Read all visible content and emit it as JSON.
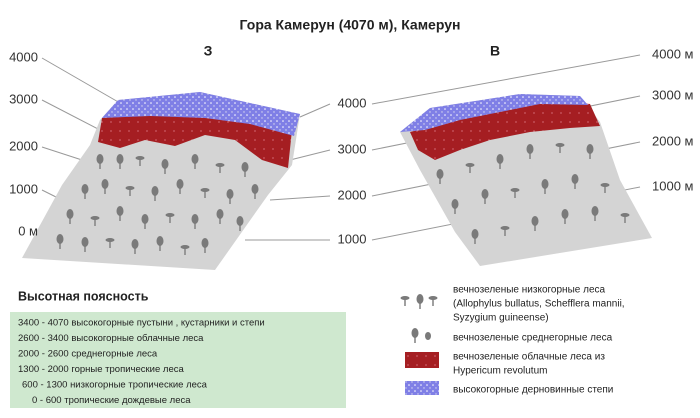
{
  "title": "Гора Камерун (4070 м), Камерун",
  "west_label": "З",
  "east_label": "В",
  "left_axis": [
    "4000",
    "3000",
    "2000",
    "1000",
    "0 м"
  ],
  "middle_axis": [
    "4000",
    "3000",
    "2000",
    "1000"
  ],
  "right_axis": [
    "4000 м",
    "3000 м",
    "2000 м",
    "1000 м"
  ],
  "zonation": {
    "heading": "Высотная поясность",
    "rows": [
      "3400 - 4070 высокогорные пустыни , кустарники и степи",
      "2600 - 3400 высокогорные облачные леса",
      "2000 - 2600 среднегорные леса",
      "1300 - 2000 горные тропические леса",
      "600 - 1300 низкогорные тропические леса",
      "0 - 600  тропические дождевые леса"
    ]
  },
  "legend": [
    {
      "lines": [
        "вечнозеленые низкогорные леса",
        "(Allophylus bullatus, Schefflera mannii,",
        "Syzygium guineense)"
      ]
    },
    {
      "lines": [
        "вечнозеленые среднегорные леса"
      ]
    },
    {
      "lines": [
        "вечнозеленые облачные леса из",
        "Hypericum revolutum"
      ]
    },
    {
      "lines": [
        "высокогорные дерновинные степи"
      ]
    }
  ]
}
